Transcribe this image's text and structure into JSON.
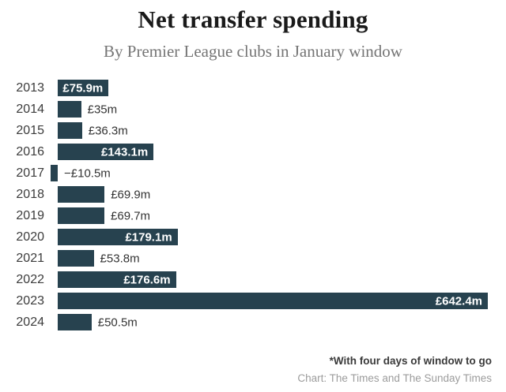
{
  "header": {
    "title": "Net transfer spending",
    "subtitle": "By Premier League clubs in January window"
  },
  "chart_data": {
    "type": "bar",
    "orientation": "horizontal",
    "title": "Net transfer spending",
    "subtitle": "By Premier League clubs in January window",
    "categories": [
      "2013",
      "2014",
      "2015",
      "2016",
      "2017",
      "2018",
      "2019",
      "2020",
      "2021",
      "2022",
      "2023",
      "2024"
    ],
    "values": [
      75.9,
      35,
      36.3,
      143.1,
      -10.5,
      69.9,
      69.7,
      179.1,
      53.8,
      176.6,
      642.4,
      50.5
    ],
    "value_labels": [
      "£75.9m",
      "£35m",
      "£36.3m",
      "£143.1m",
      "−£10.5m",
      "£69.9m",
      "£69.7m",
      "£179.1m",
      "£53.8m",
      "£176.6m",
      "£642.4m",
      "£50.5m"
    ],
    "label_inside": [
      true,
      false,
      false,
      true,
      false,
      false,
      false,
      true,
      false,
      true,
      true,
      false
    ],
    "unit": "£m",
    "xlim": [
      -10.5,
      642.4
    ],
    "grid": false,
    "legend": "none",
    "bar_color": "#27424f"
  },
  "footer": {
    "note": "*With four days of window to go",
    "credit": "Chart: The Times and The Sunday Times"
  },
  "colors": {
    "bar": "#27424f",
    "label_inside": "#ffffff",
    "label_outside": "#333333",
    "year_label": "#3c3c3c",
    "title": "#1a1a1a",
    "subtitle": "#757575",
    "note": "#3a3a3a",
    "credit": "#9c9c9c",
    "background": "#ffffff"
  }
}
